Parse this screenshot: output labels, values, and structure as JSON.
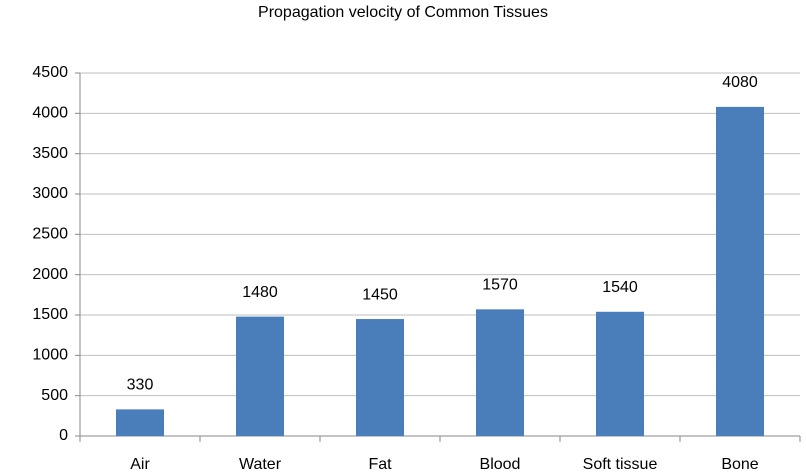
{
  "chart_data": {
    "type": "bar",
    "title": "Propagation velocity of Common Tissues",
    "categories": [
      "Air",
      "Water",
      "Fat",
      "Blood",
      "Soft tissue",
      "Bone"
    ],
    "values": [
      330,
      1480,
      1450,
      1570,
      1540,
      4080
    ],
    "color": "#4a7ebb",
    "ylim": [
      0,
      4500
    ],
    "yticks": [
      0,
      500,
      1000,
      1500,
      2000,
      2500,
      3000,
      3500,
      4000,
      4500
    ],
    "grid": true
  }
}
